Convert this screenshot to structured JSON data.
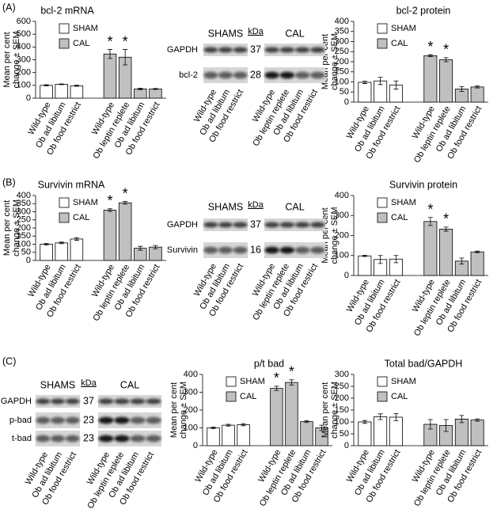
{
  "panels": [
    "(A)",
    "(B)",
    "(C)"
  ],
  "blots": [
    {
      "groups": [
        "SHAMS",
        "CAL"
      ],
      "unit": "kDa",
      "rows": [
        {
          "label": "GAPDH",
          "kda": 37
        },
        {
          "label": "bcl-2",
          "kda": 28
        }
      ],
      "lanes": [
        "Wild-type",
        "Ob ad libitum",
        "Ob food restrict",
        "Wild-type",
        "Ob leptin replete",
        "Ob ad libitum",
        "Ob food restrict"
      ]
    },
    {
      "groups": [
        "SHAMS",
        "CAL"
      ],
      "unit": "kDa",
      "rows": [
        {
          "label": "GAPDH",
          "kda": 37
        },
        {
          "label": "Survivin",
          "kda": 16
        }
      ],
      "lanes": [
        "Wild-type",
        "Ob ad libitum",
        "Ob food restrict",
        "Wild-type",
        "Ob leptin replete",
        "Ob ad libitum",
        "Ob food restrict"
      ]
    },
    {
      "groups": [
        "SHAMS",
        "CAL"
      ],
      "unit": "kDa",
      "rows": [
        {
          "label": "GAPDH",
          "kda": 37
        },
        {
          "label": "p-bad",
          "kda": 23
        },
        {
          "label": "t-bad",
          "kda": 23
        }
      ],
      "lanes": [
        "Wild-type",
        "Ob ad libitum",
        "Ob food restrict",
        "Wild-type",
        "Ob leptin replete",
        "Ob ad libitum",
        "Ob food restrict"
      ]
    }
  ],
  "chart_data": [
    {
      "type": "bar",
      "title": "bcl-2 mRNA",
      "ylabel": [
        "Mean per cent",
        "change ± SEM"
      ],
      "categories": [
        "Wild-type",
        "Ob ad libitum",
        "Ob food restrict",
        "Wild-type",
        "Ob leptin replete",
        "Ob ad libitum",
        "Ob food restrict"
      ],
      "series": [
        {
          "name": "SHAM",
          "color": "#ffffff",
          "values": [
            100,
            108,
            97,
            null,
            null,
            null,
            null
          ],
          "errors": [
            5,
            3,
            4,
            null,
            null,
            null,
            null
          ]
        },
        {
          "name": "CAL",
          "color": "#c0c0c0",
          "values": [
            null,
            null,
            null,
            345,
            320,
            72,
            72
          ],
          "errors": [
            null,
            null,
            null,
            35,
            60,
            5,
            4
          ]
        }
      ],
      "ylim": [
        0,
        600
      ],
      "yticks": [
        0,
        100,
        200,
        300,
        400,
        500,
        600
      ],
      "legend": "upper left",
      "annotations": [
        {
          "text": "*",
          "category": 3
        },
        {
          "text": "*",
          "category": 4
        }
      ]
    },
    {
      "type": "bar",
      "title": "bcl-2 protein",
      "ylabel": [
        "Mean per cent",
        "change ± SEM"
      ],
      "categories": [
        "Wild-type",
        "Ob ad libitum",
        "Ob food restrict",
        "Wild-type",
        "Ob leptin replete",
        "Ob ad libitum",
        "Ob food restrict"
      ],
      "series": [
        {
          "name": "SHAM",
          "color": "#ffffff",
          "values": [
            98,
            105,
            85,
            null,
            null,
            null,
            null
          ],
          "errors": [
            6,
            18,
            20,
            null,
            null,
            null,
            null
          ]
        },
        {
          "name": "CAL",
          "color": "#c0c0c0",
          "values": [
            null,
            null,
            null,
            230,
            210,
            65,
            75
          ],
          "errors": [
            null,
            null,
            null,
            5,
            10,
            12,
            5
          ]
        }
      ],
      "ylim": [
        0,
        400
      ],
      "yticks": [
        0,
        50,
        100,
        150,
        200,
        250,
        300,
        350,
        400
      ],
      "legend": "upper left",
      "annotations": [
        {
          "text": "*",
          "category": 3
        },
        {
          "text": "*",
          "category": 4
        }
      ]
    },
    {
      "type": "bar",
      "title": "Survivin mRNA",
      "ylabel": [
        "Mean per cent",
        "change ± SEM"
      ],
      "categories": [
        "Wild-type",
        "Ob ad libitum",
        "Ob food restrict",
        "Wild-type",
        "Ob leptin replete",
        "Ob ad libitum",
        "Ob food restrict"
      ],
      "series": [
        {
          "name": "SHAM",
          "color": "#ffffff",
          "values": [
            100,
            108,
            132,
            null,
            null,
            null,
            null
          ],
          "errors": [
            5,
            5,
            8,
            null,
            null,
            null,
            null
          ]
        },
        {
          "name": "CAL",
          "color": "#c0c0c0",
          "values": [
            null,
            null,
            null,
            310,
            355,
            75,
            82
          ],
          "errors": [
            null,
            null,
            null,
            8,
            8,
            12,
            10
          ]
        }
      ],
      "ylim": [
        0,
        400
      ],
      "yticks": [
        0,
        50,
        100,
        150,
        200,
        250,
        300,
        350,
        400
      ],
      "legend": "upper left",
      "annotations": [
        {
          "text": "*",
          "category": 3
        },
        {
          "text": "*",
          "category": 4
        }
      ]
    },
    {
      "type": "bar",
      "title": "Survivin protein",
      "ylabel": [
        "Mean per cent",
        "change ± SEM"
      ],
      "categories": [
        "Wild-type",
        "Ob ad libitum",
        "Ob food restrict",
        "Wild-type",
        "Ob leptin replete",
        "Ob ad libitum",
        "Ob food restrict"
      ],
      "series": [
        {
          "name": "SHAM",
          "color": "#ffffff",
          "values": [
            98,
            80,
            82,
            null,
            null,
            null,
            null
          ],
          "errors": [
            3,
            20,
            18,
            null,
            null,
            null,
            null
          ]
        },
        {
          "name": "CAL",
          "color": "#c0c0c0",
          "values": [
            null,
            null,
            null,
            270,
            232,
            72,
            118
          ],
          "errors": [
            null,
            null,
            null,
            20,
            10,
            15,
            4
          ]
        }
      ],
      "ylim": [
        0,
        400
      ],
      "yticks": [
        0,
        100,
        200,
        300,
        400
      ],
      "legend": "upper left",
      "annotations": [
        {
          "text": "*",
          "category": 3
        },
        {
          "text": "*",
          "category": 4
        }
      ]
    },
    {
      "type": "bar",
      "title": "p/t bad",
      "ylabel": [
        "Mean per cent",
        "change ± SEM"
      ],
      "categories": [
        "Wild-type",
        "Ob ad libitum",
        "Ob food restrict",
        "Wild-type",
        "Ob leptin replete",
        "Ob ad libitum",
        "Ob food restrict"
      ],
      "series": [
        {
          "name": "SHAM",
          "color": "#ffffff",
          "values": [
            100,
            115,
            118,
            null,
            null,
            null,
            null
          ],
          "errors": [
            5,
            5,
            6,
            null,
            null,
            null,
            null
          ]
        },
        {
          "name": "CAL",
          "color": "#c0c0c0",
          "values": [
            null,
            null,
            null,
            322,
            355,
            135,
            100
          ],
          "errors": [
            null,
            null,
            null,
            12,
            15,
            5,
            15
          ]
        }
      ],
      "ylim": [
        0,
        400
      ],
      "yticks": [
        0,
        100,
        200,
        300,
        400
      ],
      "legend": "upper left",
      "annotations": [
        {
          "text": "*",
          "category": 3
        },
        {
          "text": "*",
          "category": 4
        }
      ]
    },
    {
      "type": "bar",
      "title": "Total bad/GAPDH",
      "ylabel": [
        "Mean per cent",
        "change ± SEM"
      ],
      "categories": [
        "Wild-type",
        "Ob ad libitum",
        "Ob food restrict",
        "Wild-type",
        "Ob leptin replete",
        "Ob ad libitum",
        "Ob food restrict"
      ],
      "series": [
        {
          "name": "SHAM",
          "color": "#ffffff",
          "values": [
            100,
            122,
            120,
            null,
            null,
            null,
            null
          ],
          "errors": [
            6,
            12,
            15,
            null,
            null,
            null,
            null
          ]
        },
        {
          "name": "CAL",
          "color": "#c0c0c0",
          "values": [
            null,
            null,
            null,
            90,
            85,
            112,
            108
          ],
          "errors": [
            null,
            null,
            null,
            20,
            25,
            15,
            5
          ]
        }
      ],
      "ylim": [
        0,
        300
      ],
      "yticks": [
        0,
        50,
        100,
        150,
        200,
        250,
        300
      ],
      "legend": "upper left"
    }
  ]
}
